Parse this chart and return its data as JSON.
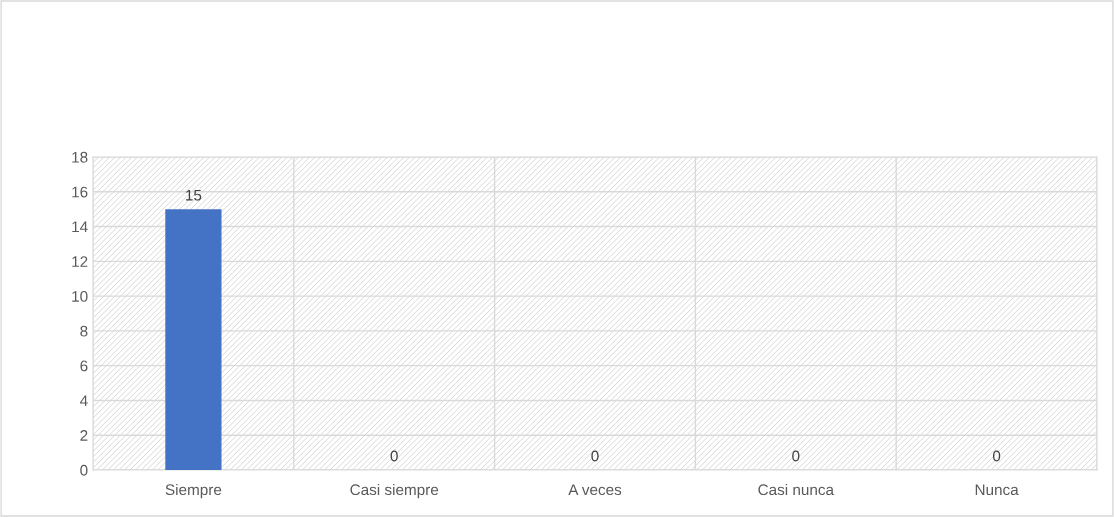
{
  "chart_data": {
    "type": "bar",
    "categories": [
      "Siempre",
      "Casi siempre",
      "A veces",
      "Casi nunca",
      "Nunca"
    ],
    "values": [
      15,
      0,
      0,
      0,
      0
    ],
    "color": "#4472c4",
    "ylim": [
      0,
      18
    ],
    "yticks": [
      0,
      2,
      4,
      6,
      8,
      10,
      12,
      14,
      16,
      18
    ],
    "grid": true,
    "data_labels": true,
    "legend": false
  }
}
